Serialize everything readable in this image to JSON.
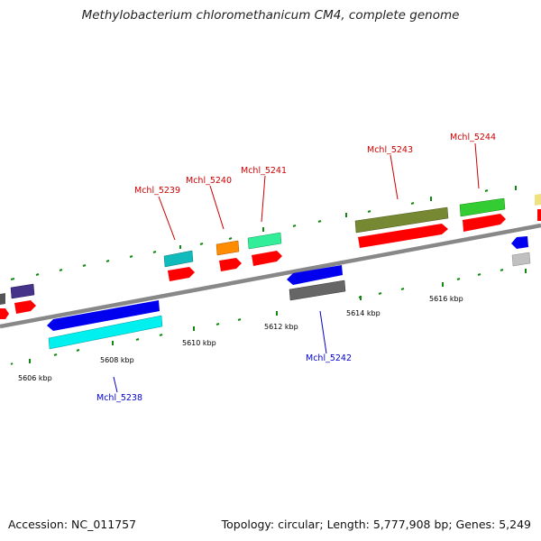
{
  "title": "Methylobacterium chloromethanicum CM4, complete genome",
  "footer": {
    "accession": "Accession: NC_011757",
    "stats": "Topology: circular; Length: 5,777,908 bp; Genes: 5,249"
  },
  "scale_labels": [
    "5606 kbp",
    "5608 kbp",
    "5610 kbp",
    "5612 kbp",
    "5614 kbp",
    "5616 kbp"
  ],
  "gene_labels": [
    {
      "text": "Mchl_5238",
      "color": "#0000cc"
    },
    {
      "text": "Mchl_5239",
      "color": "#cc0000"
    },
    {
      "text": "Mchl_5240",
      "color": "#cc0000"
    },
    {
      "text": "Mchl_5241",
      "color": "#cc0000"
    },
    {
      "text": "Mchl_5242",
      "color": "#0000cc"
    },
    {
      "text": "Mchl_5243",
      "color": "#cc0000"
    },
    {
      "text": "Mchl_5244",
      "color": "#cc0000"
    }
  ],
  "colors": {
    "backbone": "#888888",
    "tick": "#118811",
    "forward_label": "#cc0000",
    "reverse_label": "#0000cc",
    "cds_forward": "#ff0000",
    "cds_reverse": "#666666"
  }
}
